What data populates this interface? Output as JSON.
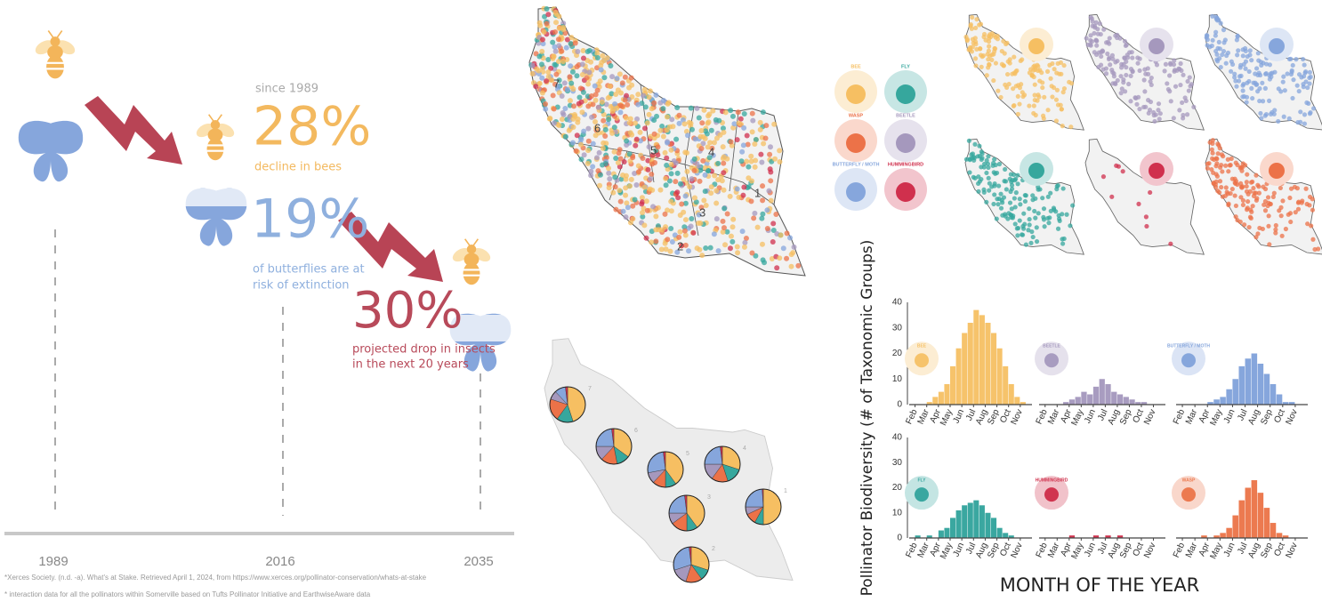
{
  "timeline": {
    "since": "since 1989",
    "bees_pct": "28%",
    "bees_text": "decline in bees",
    "butterflies_pct": "19%",
    "butterflies_text": [
      "of butterflies are at",
      "risk of extinction"
    ],
    "insects_pct": "30%",
    "insects_text": [
      "projected drop in insects",
      "in the next 20 years"
    ],
    "years": [
      "1989",
      "2016",
      "2035"
    ]
  },
  "footnotes": [
    "*Xerces Society. (n.d. -a). What's at Stake. Retrieved April 1, 2024, from https://www.xerces.org/pollinator-conservation/whats-at-stake",
    "* interaction data for all the pollinators within Somerville based on Tufts Pollinator Initiative and EarthwiseAware data"
  ],
  "map": {
    "wards": [
      "1",
      "2",
      "3",
      "4",
      "5",
      "6",
      "7"
    ],
    "species": [
      {
        "name": "BEE",
        "color": "#f6bf62"
      },
      {
        "name": "FLY",
        "color": "#36a79d"
      },
      {
        "name": "WASP",
        "color": "#ec7248"
      },
      {
        "name": "BEETLE",
        "color": "#a598bd"
      },
      {
        "name": "BUTTERFLY / MOTH",
        "color": "#86a6dc"
      },
      {
        "name": "HUMMINGBIRD",
        "color": "#d0304d"
      }
    ],
    "pies": [
      {
        "ward": "7",
        "values": [
          45,
          15,
          20,
          8,
          10,
          2
        ]
      },
      {
        "ward": "6",
        "values": [
          35,
          12,
          15,
          13,
          23,
          2
        ]
      },
      {
        "ward": "5",
        "values": [
          40,
          10,
          12,
          10,
          26,
          2
        ]
      },
      {
        "ward": "4",
        "values": [
          30,
          15,
          15,
          15,
          23,
          2
        ]
      },
      {
        "ward": "1",
        "values": [
          50,
          8,
          10,
          7,
          24,
          1
        ]
      },
      {
        "ward": "3",
        "values": [
          40,
          10,
          15,
          10,
          23,
          2
        ]
      },
      {
        "ward": "2",
        "values": [
          30,
          10,
          15,
          15,
          28,
          2
        ]
      }
    ]
  },
  "figure": {
    "ylabel": "Pollinator Biodiversity (# of Taxonomic Groups)",
    "xlabel": "MONTH OF THE YEAR"
  },
  "chart_data": [
    {
      "type": "histogram",
      "title": "BEE",
      "color": "#f6c36b",
      "bins": [
        2,
        2.5,
        3,
        3.5,
        4,
        4.5,
        5,
        5.5,
        6,
        6.5,
        7,
        7.5,
        8,
        8.5,
        9,
        9.5,
        10,
        10.5,
        11,
        11.5,
        12
      ],
      "counts": [
        0,
        0,
        1,
        3,
        5,
        8,
        15,
        22,
        28,
        32,
        37,
        35,
        32,
        28,
        22,
        15,
        8,
        3,
        1,
        0
      ],
      "xlim": [
        1.5,
        12
      ],
      "ylim": [
        0,
        40
      ],
      "yticks": [
        0,
        10,
        20,
        30,
        40
      ],
      "xticks": [
        {
          "value": 2,
          "label": "Feb"
        },
        {
          "value": 3,
          "label": "Mar"
        },
        {
          "value": 4,
          "label": "Apr"
        },
        {
          "value": 5,
          "label": "May"
        },
        {
          "value": 6,
          "label": "Jun"
        },
        {
          "value": 7,
          "label": "Jul"
        },
        {
          "value": 8,
          "label": "Aug"
        },
        {
          "value": 9,
          "label": "Sep"
        },
        {
          "value": 10,
          "label": "Oct"
        },
        {
          "value": 11,
          "label": "Nov"
        }
      ]
    },
    {
      "type": "histogram",
      "title": "BEETLE",
      "color": "#a89cc0",
      "bins": [
        2,
        2.5,
        3,
        3.5,
        4,
        4.5,
        5,
        5.5,
        6,
        6.5,
        7,
        7.5,
        8,
        8.5,
        9,
        9.5,
        10,
        10.5,
        11,
        11.5,
        12
      ],
      "counts": [
        0,
        0,
        0,
        1,
        2,
        3,
        5,
        4,
        7,
        10,
        8,
        5,
        4,
        3,
        2,
        1,
        1,
        0,
        0,
        0
      ],
      "xlim": [
        1.5,
        12
      ],
      "ylim": [
        0,
        40
      ],
      "xticks": [
        {
          "value": 2,
          "label": "Feb"
        },
        {
          "value": 3,
          "label": "Mar"
        },
        {
          "value": 4,
          "label": "Apr"
        },
        {
          "value": 5,
          "label": "May"
        },
        {
          "value": 6,
          "label": "Jun"
        },
        {
          "value": 7,
          "label": "Jul"
        },
        {
          "value": 8,
          "label": "Aug"
        },
        {
          "value": 9,
          "label": "Sep"
        },
        {
          "value": 10,
          "label": "Oct"
        },
        {
          "value": 11,
          "label": "Nov"
        }
      ]
    },
    {
      "type": "histogram",
      "title": "BUTTERFLY / MOTH",
      "color": "#86a6dc",
      "bins": [
        2,
        2.5,
        3,
        3.5,
        4,
        4.5,
        5,
        5.5,
        6,
        6.5,
        7,
        7.5,
        8,
        8.5,
        9,
        9.5,
        10,
        10.5,
        11,
        11.5,
        12
      ],
      "counts": [
        0,
        0,
        0,
        0,
        1,
        2,
        3,
        6,
        10,
        15,
        18,
        20,
        16,
        12,
        8,
        4,
        1,
        1,
        0,
        0
      ],
      "xlim": [
        1.5,
        12
      ],
      "ylim": [
        0,
        40
      ],
      "xticks": [
        {
          "value": 2,
          "label": "Feb"
        },
        {
          "value": 3,
          "label": "Mar"
        },
        {
          "value": 4,
          "label": "Apr"
        },
        {
          "value": 5,
          "label": "May"
        },
        {
          "value": 6,
          "label": "Jun"
        },
        {
          "value": 7,
          "label": "Jul"
        },
        {
          "value": 8,
          "label": "Aug"
        },
        {
          "value": 9,
          "label": "Sep"
        },
        {
          "value": 10,
          "label": "Oct"
        },
        {
          "value": 11,
          "label": "Nov"
        }
      ]
    },
    {
      "type": "histogram",
      "title": "FLY",
      "color": "#3aa7a0",
      "bins": [
        2,
        2.5,
        3,
        3.5,
        4,
        4.5,
        5,
        5.5,
        6,
        6.5,
        7,
        7.5,
        8,
        8.5,
        9,
        9.5,
        10,
        10.5,
        11,
        11.5,
        12
      ],
      "counts": [
        1,
        0,
        1,
        0,
        3,
        4,
        8,
        11,
        13,
        14,
        15,
        13,
        10,
        8,
        4,
        2,
        1,
        0,
        0,
        0
      ],
      "xlim": [
        1.5,
        12
      ],
      "ylim": [
        0,
        40
      ],
      "yticks": [
        0,
        10,
        20,
        30,
        40
      ],
      "xticks": [
        {
          "value": 2,
          "label": "Feb"
        },
        {
          "value": 3,
          "label": "Mar"
        },
        {
          "value": 4,
          "label": "Apr"
        },
        {
          "value": 5,
          "label": "May"
        },
        {
          "value": 6,
          "label": "Jun"
        },
        {
          "value": 7,
          "label": "Jul"
        },
        {
          "value": 8,
          "label": "Aug"
        },
        {
          "value": 9,
          "label": "Sep"
        },
        {
          "value": 10,
          "label": "Oct"
        },
        {
          "value": 11,
          "label": "Nov"
        }
      ]
    },
    {
      "type": "histogram",
      "title": "HUMMINGBIRD",
      "color": "#d0344f",
      "bins": [
        2,
        2.5,
        3,
        3.5,
        4,
        4.5,
        5,
        5.5,
        6,
        6.5,
        7,
        7.5,
        8,
        8.5,
        9,
        9.5,
        10,
        10.5,
        11,
        11.5,
        12
      ],
      "counts": [
        0,
        0,
        0,
        0,
        1,
        0,
        0,
        0,
        1,
        0,
        1,
        0,
        1,
        0,
        0,
        0,
        0,
        0,
        0,
        0
      ],
      "xlim": [
        1.5,
        12
      ],
      "ylim": [
        0,
        40
      ],
      "xticks": [
        {
          "value": 2,
          "label": "Feb"
        },
        {
          "value": 3,
          "label": "Mar"
        },
        {
          "value": 4,
          "label": "Apr"
        },
        {
          "value": 5,
          "label": "May"
        },
        {
          "value": 6,
          "label": "Jun"
        },
        {
          "value": 7,
          "label": "Jul"
        },
        {
          "value": 8,
          "label": "Aug"
        },
        {
          "value": 9,
          "label": "Sep"
        },
        {
          "value": 10,
          "label": "Oct"
        },
        {
          "value": 11,
          "label": "Nov"
        }
      ]
    },
    {
      "type": "histogram",
      "title": "WASP",
      "color": "#ec7a50",
      "bins": [
        2,
        2.5,
        3,
        3.5,
        4,
        4.5,
        5,
        5.5,
        6,
        6.5,
        7,
        7.5,
        8,
        8.5,
        9,
        9.5,
        10,
        10.5,
        11,
        11.5,
        12
      ],
      "counts": [
        0,
        0,
        0,
        1,
        0,
        1,
        2,
        4,
        9,
        15,
        20,
        23,
        18,
        12,
        6,
        2,
        1,
        0,
        0,
        0
      ],
      "xlim": [
        1.5,
        12
      ],
      "ylim": [
        0,
        40
      ],
      "xticks": [
        {
          "value": 2,
          "label": "Feb"
        },
        {
          "value": 3,
          "label": "Mar"
        },
        {
          "value": 4,
          "label": "Apr"
        },
        {
          "value": 5,
          "label": "May"
        },
        {
          "value": 6,
          "label": "Jun"
        },
        {
          "value": 7,
          "label": "Jul"
        },
        {
          "value": 8,
          "label": "Aug"
        },
        {
          "value": 9,
          "label": "Sep"
        },
        {
          "value": 10,
          "label": "Oct"
        },
        {
          "value": 11,
          "label": "Nov"
        }
      ]
    }
  ]
}
